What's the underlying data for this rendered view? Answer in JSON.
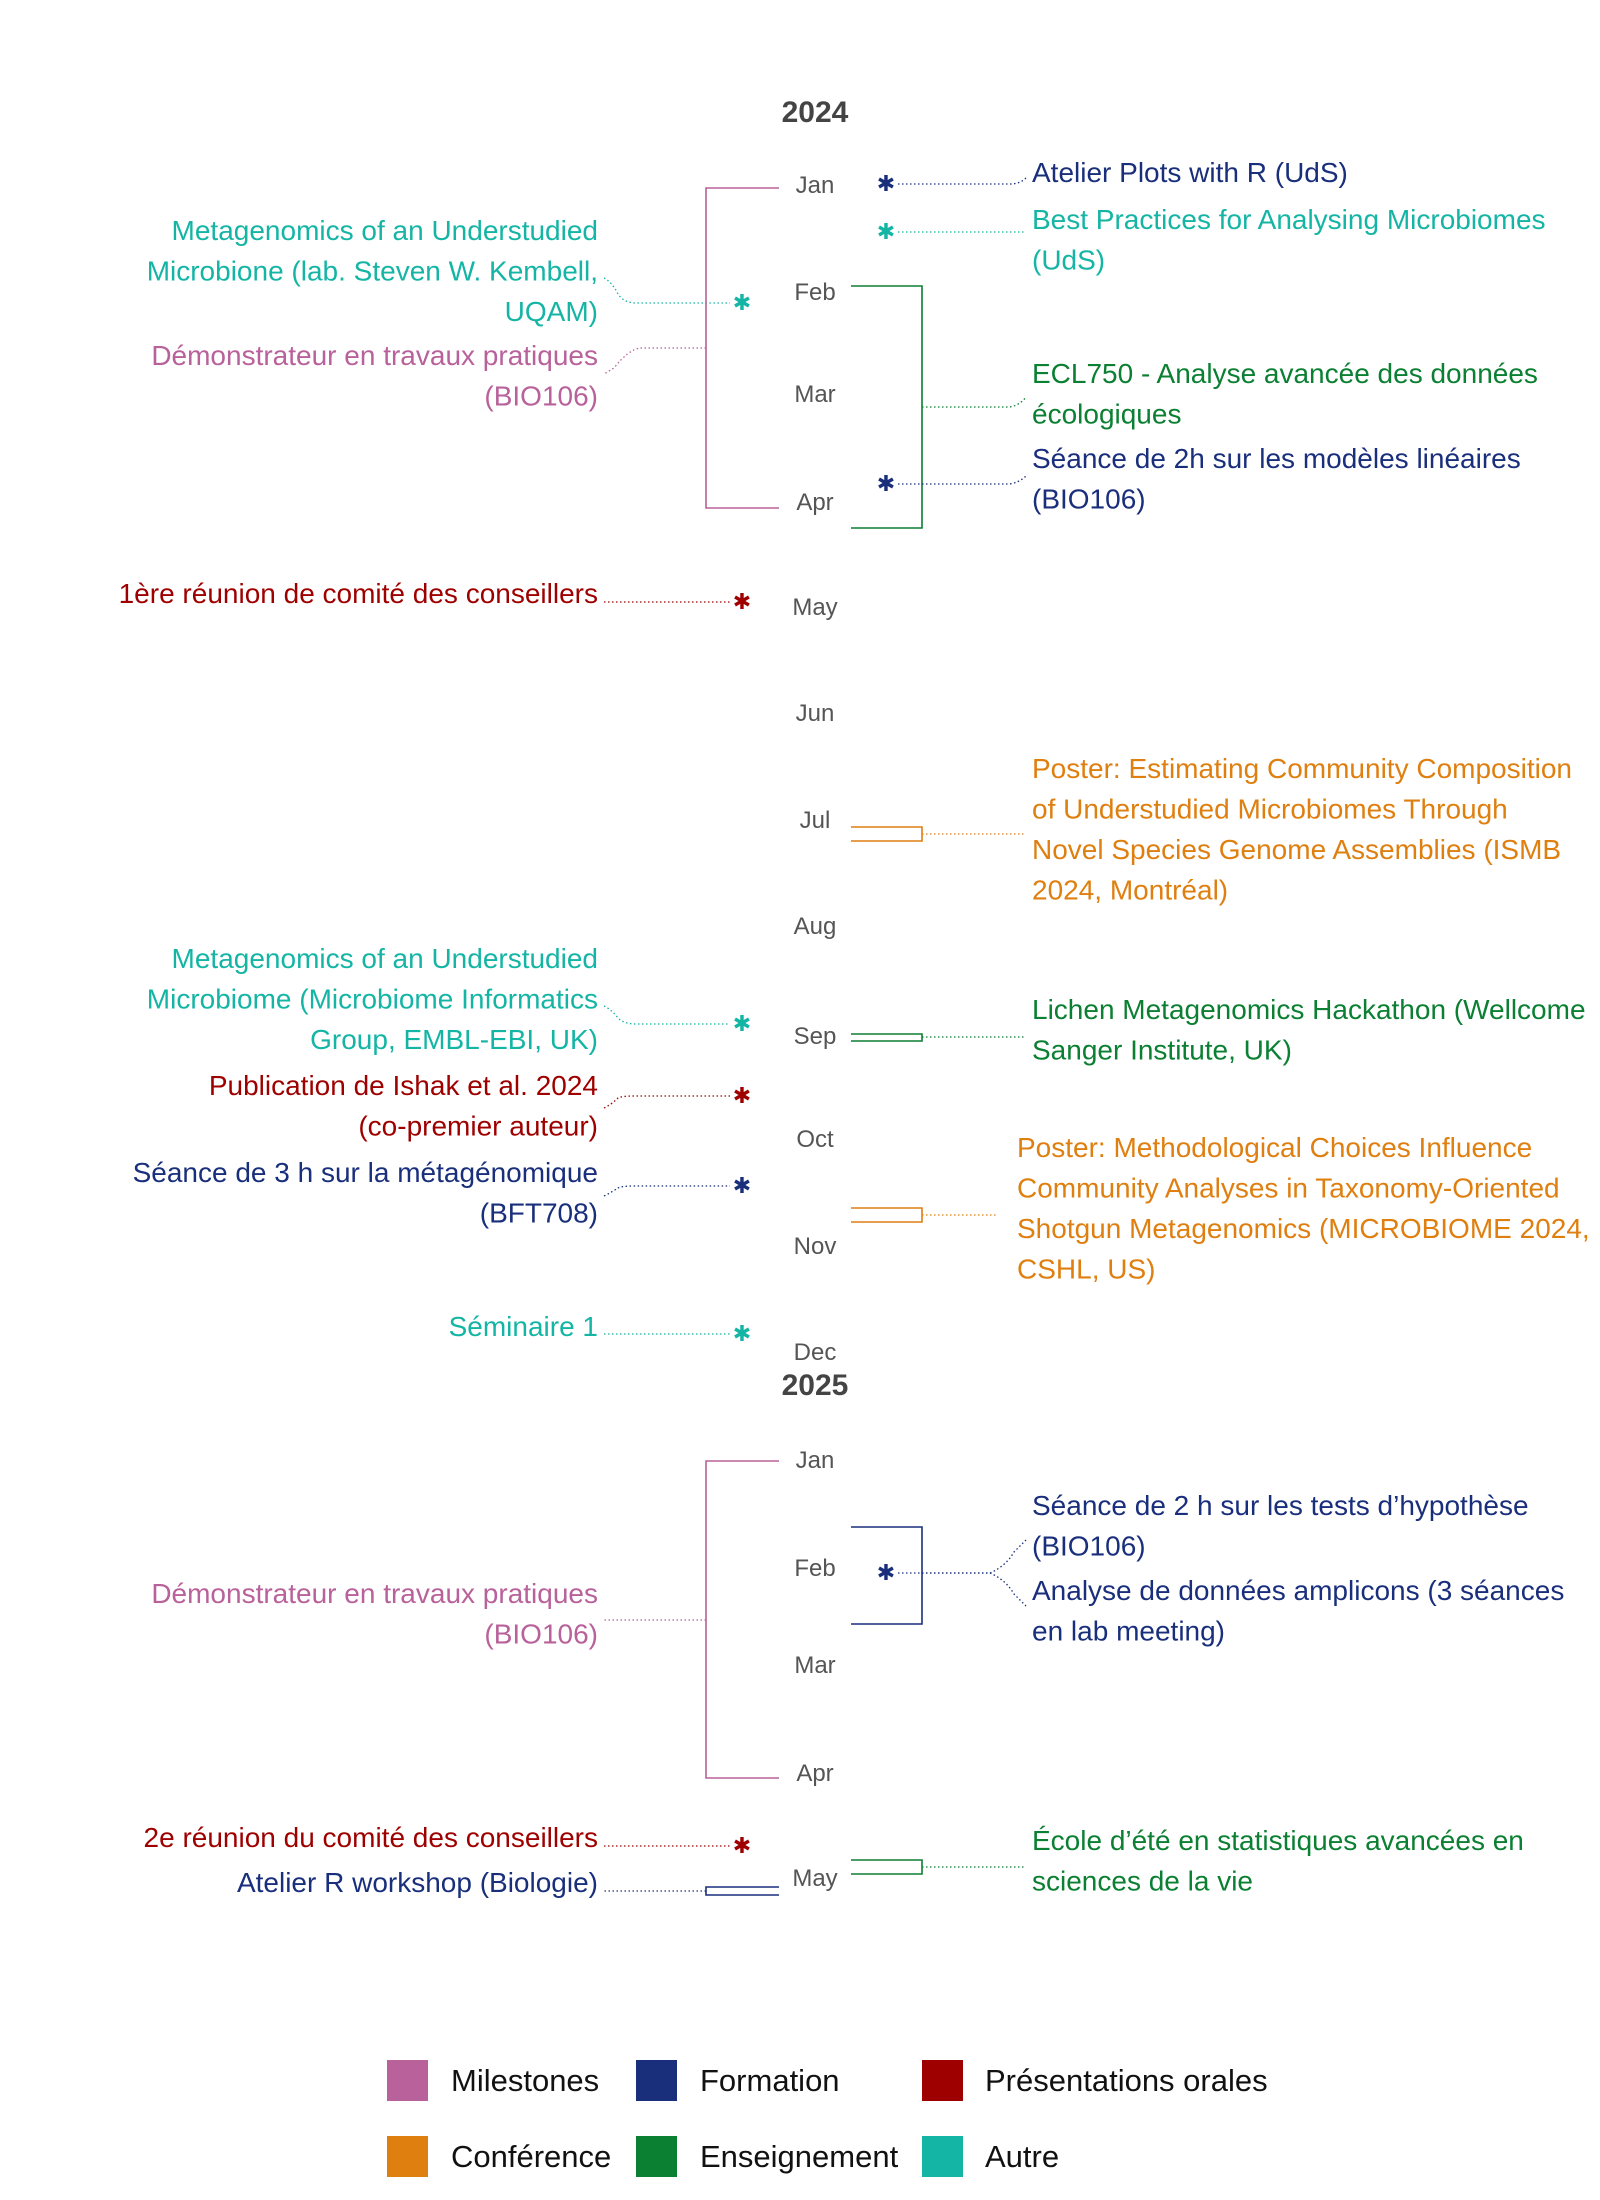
{
  "categories": {
    "milestones": {
      "label": "Milestones",
      "color": "#b8619a"
    },
    "formation": {
      "label": "Formation",
      "color": "#1a2f7c"
    },
    "presentations": {
      "label": "Présentations orales",
      "color": "#9e0000"
    },
    "conference": {
      "label": "Conférence",
      "color": "#df7f10"
    },
    "enseignement": {
      "label": "Enseignement",
      "color": "#0b7f32"
    },
    "autre": {
      "label": "Autre",
      "color": "#15b5a5"
    }
  },
  "legend_order": [
    "milestones",
    "formation",
    "presentations",
    "conference",
    "enseignement",
    "autre"
  ],
  "years": [
    "2024",
    "2025"
  ],
  "months_2024": [
    "Jan",
    "Feb",
    "Mar",
    "Apr",
    "May",
    "Jun",
    "Jul",
    "Aug",
    "Sep",
    "Oct",
    "Nov",
    "Dec"
  ],
  "months_2025": [
    "Jan",
    "Feb",
    "Mar",
    "Apr",
    "May"
  ],
  "events": [
    {
      "side": "right",
      "category": "formation",
      "marker": "star",
      "lines": [
        "Atelier Plots with R (UdS)"
      ]
    },
    {
      "side": "right",
      "category": "autre",
      "marker": "star",
      "lines": [
        "Best Practices for Analysing Microbiomes",
        "(UdS)"
      ]
    },
    {
      "side": "left",
      "category": "autre",
      "marker": "star",
      "lines": [
        "Metagenomics of an Understudied",
        "Microbione (lab. Steven W. Kembell,",
        "UQAM)"
      ]
    },
    {
      "side": "left",
      "category": "milestones",
      "marker": "bracket",
      "lines": [
        "Démonstrateur en travaux pratiques",
        "(BIO106)"
      ]
    },
    {
      "side": "right",
      "category": "enseignement",
      "marker": "bracket",
      "lines": [
        "ECL750 - Analyse avancée des données",
        "écologiques"
      ]
    },
    {
      "side": "right",
      "category": "formation",
      "marker": "star",
      "lines": [
        "Séance de 2h sur les modèles linéaires",
        "(BIO106)"
      ]
    },
    {
      "side": "left",
      "category": "presentations",
      "marker": "star",
      "lines": [
        "1ère réunion de comité des conseillers"
      ]
    },
    {
      "side": "right",
      "category": "conference",
      "marker": "bracket",
      "lines": [
        "Poster: Estimating Community Composition",
        "of Understudied Microbiomes Through",
        "Novel Species Genome Assemblies (ISMB",
        "2024, Montréal)"
      ]
    },
    {
      "side": "left",
      "category": "autre",
      "marker": "star",
      "lines": [
        "Metagenomics of an Understudied",
        "Microbiome (Microbiome Informatics",
        "Group, EMBL-EBI, UK)"
      ]
    },
    {
      "side": "right",
      "category": "enseignement",
      "marker": "bracket",
      "lines": [
        "Lichen Metagenomics Hackathon (Wellcome",
        "Sanger Institute, UK)"
      ]
    },
    {
      "side": "left",
      "category": "presentations",
      "marker": "star",
      "lines": [
        "Publication de Ishak et al. 2024",
        "(co-premier auteur)"
      ]
    },
    {
      "side": "left",
      "category": "formation",
      "marker": "star",
      "lines": [
        "Séance de 3 h sur la métagénomique",
        "(BFT708)"
      ]
    },
    {
      "side": "right",
      "category": "conference",
      "marker": "bracket",
      "lines": [
        "Poster: Methodological Choices Influence",
        "Community Analyses in Taxonomy-Oriented",
        "Shotgun Metagenomics (MICROBIOME 2024,",
        "CSHL, US)"
      ]
    },
    {
      "side": "left",
      "category": "autre",
      "marker": "star",
      "lines": [
        "Séminaire 1"
      ]
    },
    {
      "side": "left",
      "category": "milestones",
      "marker": "bracket",
      "lines": [
        "Démonstrateur en travaux pratiques",
        "(BIO106)"
      ]
    },
    {
      "side": "right",
      "category": "formation",
      "marker": "star",
      "lines": [
        "Séance de 2 h sur les tests d’hypothèse",
        "(BIO106)"
      ]
    },
    {
      "side": "right",
      "category": "formation",
      "marker": "bracket",
      "lines": [
        "Analyse de données amplicons (3 séances",
        "en lab meeting)"
      ]
    },
    {
      "side": "left",
      "category": "presentations",
      "marker": "star",
      "lines": [
        "2e réunion du comité des conseillers"
      ]
    },
    {
      "side": "left",
      "category": "formation",
      "marker": "bracket",
      "lines": [
        "Atelier R workshop (Biologie)"
      ]
    },
    {
      "side": "right",
      "category": "enseignement",
      "marker": "bracket",
      "lines": [
        "École d’été en statistiques avancées en",
        "sciences de la vie"
      ]
    }
  ]
}
